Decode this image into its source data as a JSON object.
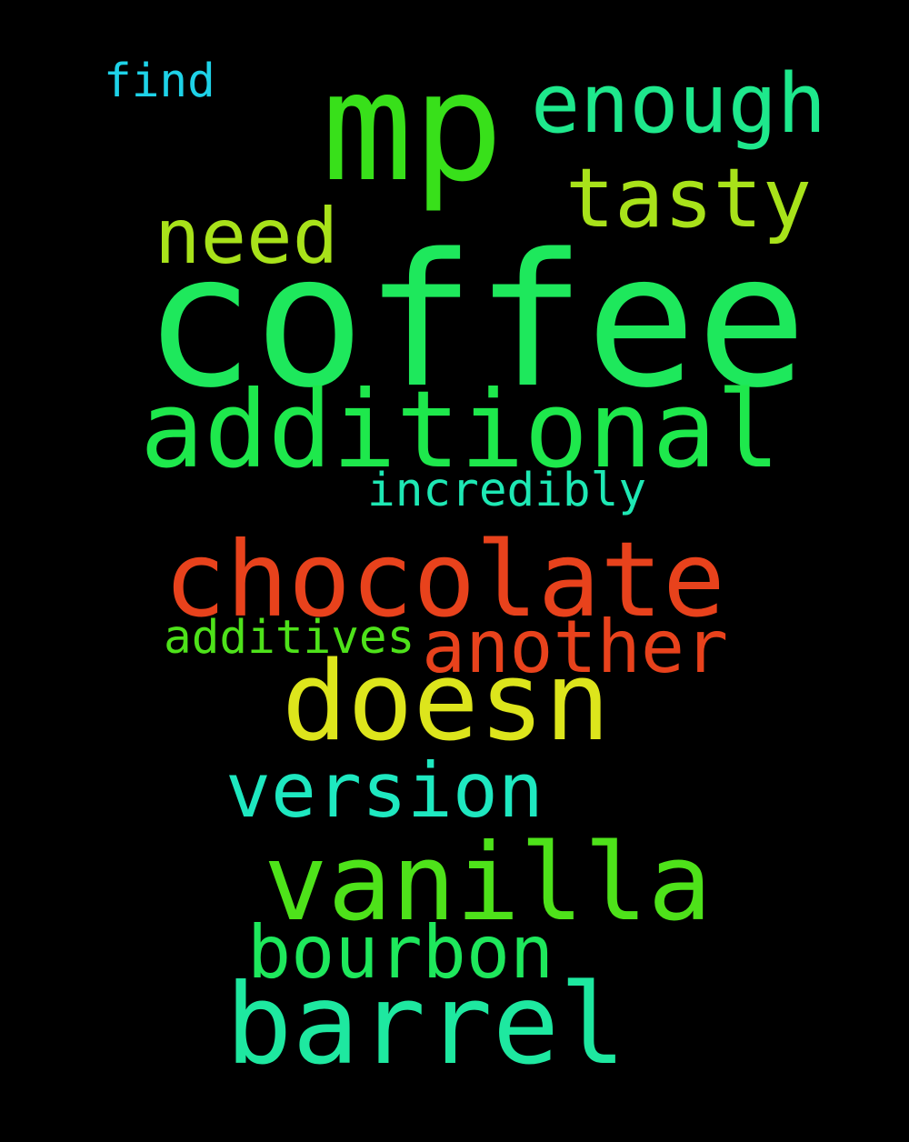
{
  "background": "#000000",
  "words": [
    {
      "key": "coffee",
      "text": "coffee",
      "color": "#1ee85c"
    },
    {
      "key": "mp",
      "text": "mp",
      "color": "#38e01a"
    },
    {
      "key": "additional",
      "text": "additional",
      "color": "#1ee84c"
    },
    {
      "key": "chocolate",
      "text": "chocolate",
      "color": "#e8421c"
    },
    {
      "key": "doesn",
      "text": "doesn",
      "color": "#dde51c"
    },
    {
      "key": "vanilla",
      "text": "vanilla",
      "color": "#4ee21a"
    },
    {
      "key": "barrel",
      "text": "barrel",
      "color": "#1ee8a0"
    },
    {
      "key": "enough",
      "text": "enough",
      "color": "#1ee88c"
    },
    {
      "key": "tasty",
      "text": "tasty",
      "color": "#a8e21a"
    },
    {
      "key": "need",
      "text": "need",
      "color": "#a8e21a"
    },
    {
      "key": "another",
      "text": "another",
      "color": "#e8421c"
    },
    {
      "key": "version",
      "text": "version",
      "color": "#1ee8c0"
    },
    {
      "key": "bourbon",
      "text": "bourbon",
      "color": "#1ee85c"
    },
    {
      "key": "incredibly",
      "text": "incredibly",
      "color": "#1ee8b4"
    },
    {
      "key": "additives",
      "text": "additives",
      "color": "#4ee21a"
    },
    {
      "key": "find",
      "text": "find",
      "color": "#1ed2e8"
    }
  ]
}
